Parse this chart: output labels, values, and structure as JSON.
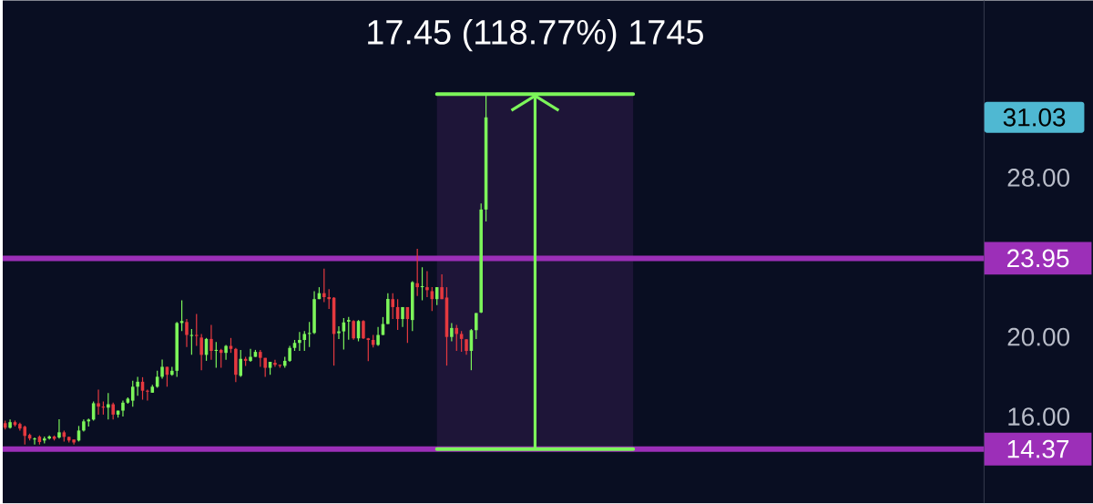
{
  "chart_data": {
    "type": "candlestick",
    "categories": [
      null,
      null,
      null,
      null,
      null,
      null,
      null,
      null,
      null,
      null,
      null,
      null,
      null,
      null,
      null,
      null,
      null,
      null,
      null,
      null,
      null,
      null,
      null,
      null,
      null,
      null,
      null,
      null,
      null,
      null,
      null,
      null,
      null,
      null,
      null,
      null,
      null,
      null,
      null,
      null,
      null,
      null,
      null,
      null,
      null,
      null,
      null,
      null,
      null,
      null,
      null,
      null,
      null,
      null,
      null,
      null,
      null,
      null,
      null,
      null,
      null,
      null,
      null,
      null,
      null,
      null,
      null,
      null,
      null,
      null,
      null,
      null,
      null,
      null,
      null,
      null,
      null,
      null,
      null,
      null,
      null,
      null,
      null,
      null,
      null,
      null,
      null,
      null,
      null,
      null,
      null,
      null,
      null,
      null,
      null,
      null,
      null,
      null,
      null,
      null,
      null,
      null,
      null,
      null,
      null,
      null,
      null,
      null,
      null,
      null,
      null,
      null,
      null,
      null,
      null,
      null,
      null,
      null,
      null,
      null,
      null,
      null,
      null,
      null,
      null,
      null,
      null,
      null,
      null,
      null,
      null,
      null,
      null,
      null,
      null,
      null,
      null,
      null,
      null,
      null,
      null,
      null,
      null,
      null,
      null,
      null,
      null,
      null,
      null,
      null,
      null,
      null,
      null,
      null,
      null,
      null,
      null,
      null,
      null,
      null,
      null,
      null,
      null,
      null,
      null,
      null,
      null,
      null,
      null,
      null,
      null,
      null,
      null,
      null,
      null,
      null,
      null,
      null,
      null,
      null,
      null,
      null,
      null,
      null,
      null,
      null,
      null,
      null,
      null,
      null,
      null,
      null,
      null,
      null,
      null,
      null,
      null,
      null,
      null,
      null
    ],
    "ohlc": [
      [
        15.67,
        15.8,
        15.35,
        15.44
      ],
      [
        15.44,
        15.85,
        15.4,
        15.72
      ],
      [
        15.72,
        15.8,
        15.5,
        15.58
      ],
      [
        15.63,
        15.7,
        15.3,
        15.4
      ],
      [
        15.49,
        15.55,
        14.6,
        15.03
      ],
      [
        15.08,
        15.15,
        14.8,
        14.9
      ],
      [
        14.85,
        14.95,
        14.6,
        14.9
      ],
      [
        14.99,
        15.05,
        14.6,
        14.72
      ],
      [
        14.8,
        15.0,
        14.65,
        14.9
      ],
      [
        14.9,
        15.05,
        14.85,
        15.0
      ],
      [
        15.0,
        15.05,
        14.8,
        14.88
      ],
      [
        14.95,
        15.87,
        14.9,
        15.21
      ],
      [
        15.21,
        15.3,
        14.75,
        14.98
      ],
      [
        14.98,
        15.0,
        14.7,
        14.8
      ],
      [
        14.85,
        14.85,
        14.6,
        14.7
      ],
      [
        14.8,
        15.53,
        14.75,
        15.3
      ],
      [
        15.3,
        15.85,
        15.25,
        15.76
      ],
      [
        15.76,
        15.9,
        15.5,
        15.85
      ],
      [
        15.85,
        16.76,
        15.8,
        16.67
      ],
      [
        16.67,
        17.36,
        16.1,
        16.5
      ],
      [
        16.5,
        16.76,
        16.1,
        16.45
      ],
      [
        16.45,
        17.18,
        15.85,
        16.62
      ],
      [
        16.62,
        16.7,
        15.85,
        16.1
      ],
      [
        16.1,
        16.3,
        15.95,
        16.3
      ],
      [
        16.3,
        16.8,
        16.0,
        16.7
      ],
      [
        16.7,
        16.96,
        16.65,
        16.9
      ],
      [
        16.8,
        17.8,
        16.5,
        17.5
      ],
      [
        17.5,
        18.0,
        17.04,
        17.75
      ],
      [
        17.75,
        17.98,
        16.85,
        17.3
      ],
      [
        17.3,
        17.35,
        16.8,
        17.25
      ],
      [
        17.2,
        17.6,
        17.2,
        17.5
      ],
      [
        17.5,
        18.3,
        17.45,
        18.0
      ],
      [
        18.0,
        18.87,
        17.9,
        18.5
      ],
      [
        18.5,
        18.5,
        17.5,
        18.1
      ],
      [
        18.1,
        18.5,
        18.05,
        18.3
      ],
      [
        18.3,
        20.75,
        18.0,
        20.7
      ],
      [
        20.7,
        21.84,
        20.3,
        20.8
      ],
      [
        20.75,
        20.9,
        19.5,
        20.1
      ],
      [
        20.05,
        20.4,
        19.1,
        20.1
      ],
      [
        20.1,
        21.15,
        19.55,
        20.05
      ],
      [
        19.97,
        20.15,
        18.33,
        19.1
      ],
      [
        19.1,
        19.95,
        18.8,
        19.9
      ],
      [
        19.9,
        20.6,
        18.85,
        19.3
      ],
      [
        19.3,
        19.75,
        18.45,
        19.35
      ],
      [
        19.35,
        19.4,
        18.45,
        19.2
      ],
      [
        19.2,
        19.6,
        18.85,
        19.55
      ],
      [
        19.55,
        19.95,
        19.2,
        19.4
      ],
      [
        19.4,
        19.45,
        17.73,
        18.1
      ],
      [
        18.05,
        19.35,
        18.0,
        18.9
      ],
      [
        18.9,
        19.0,
        18.55,
        18.8
      ],
      [
        18.8,
        19.4,
        18.75,
        19.0
      ],
      [
        19.0,
        19.35,
        19.0,
        19.25
      ],
      [
        19.25,
        19.35,
        18.5,
        18.95
      ],
      [
        18.95,
        18.95,
        18.0,
        18.45
      ],
      [
        18.45,
        18.75,
        18.1,
        18.75
      ],
      [
        18.7,
        18.85,
        18.5,
        18.6
      ],
      [
        18.6,
        18.6,
        18.45,
        18.55
      ],
      [
        18.55,
        19.0,
        18.45,
        18.8
      ],
      [
        18.8,
        19.55,
        18.75,
        19.45
      ],
      [
        19.45,
        19.85,
        19.3,
        19.7
      ],
      [
        19.7,
        20.25,
        19.3,
        19.85
      ],
      [
        19.85,
        20.3,
        19.3,
        20.15
      ],
      [
        20.15,
        20.75,
        19.5,
        20.2
      ],
      [
        20.2,
        22.3,
        20.15,
        21.9
      ],
      [
        21.9,
        22.5,
        21.9,
        22.2
      ],
      [
        22.2,
        23.43,
        21.75,
        22.0
      ],
      [
        22.0,
        22.4,
        21.4,
        21.9
      ],
      [
        21.97,
        22.0,
        18.56,
        20.15
      ],
      [
        20.19,
        20.54,
        19.89,
        20.28
      ],
      [
        20.28,
        20.95,
        19.37,
        20.73
      ],
      [
        20.77,
        21.0,
        19.86,
        20.85
      ],
      [
        20.8,
        20.85,
        19.86,
        19.93
      ],
      [
        19.93,
        20.85,
        19.78,
        20.8
      ],
      [
        20.8,
        20.85,
        19.9,
        19.93
      ],
      [
        19.93,
        19.95,
        18.79,
        19.85
      ],
      [
        19.85,
        20.1,
        19.47,
        19.6
      ],
      [
        19.6,
        20.5,
        19.55,
        20.1
      ],
      [
        20.1,
        21.0,
        20.1,
        20.65
      ],
      [
        20.65,
        22.2,
        20.65,
        21.91
      ],
      [
        21.9,
        22.2,
        20.9,
        21.5
      ],
      [
        21.5,
        21.9,
        20.35,
        20.9
      ],
      [
        20.9,
        21.5,
        20.5,
        21.5
      ],
      [
        21.5,
        21.5,
        19.7,
        20.9
      ],
      [
        20.85,
        22.8,
        20.3,
        22.75
      ],
      [
        22.7,
        24.43,
        22.06,
        22.5
      ],
      [
        22.5,
        23.5,
        21.84,
        22.55
      ],
      [
        22.5,
        23.3,
        22.0,
        22.35
      ],
      [
        22.3,
        22.5,
        21.3,
        21.9
      ],
      [
        21.9,
        22.5,
        21.6,
        22.5
      ],
      [
        22.5,
        23.15,
        21.9,
        21.9
      ],
      [
        21.98,
        22.5,
        18.56,
        20.0
      ],
      [
        20.0,
        20.7,
        19.78,
        20.45
      ],
      [
        20.45,
        20.6,
        19.3,
        20.15
      ],
      [
        20.15,
        20.3,
        19.25,
        19.9
      ],
      [
        19.88,
        19.9,
        19.1,
        19.3
      ],
      [
        19.3,
        20.4,
        18.33,
        20.34
      ],
      [
        20.34,
        21.2,
        19.9,
        21.2
      ],
      [
        21.23,
        26.7,
        21.2,
        26.4
      ],
      [
        26.4,
        32.26,
        25.8,
        31.03
      ],
      null,
      null,
      null,
      null,
      null,
      null,
      null,
      null,
      null,
      null,
      null,
      null,
      null,
      null,
      null,
      null,
      null,
      null,
      null,
      null,
      null,
      null,
      null,
      null,
      null,
      null,
      null,
      null,
      null,
      null,
      null,
      null,
      null,
      null,
      null,
      null,
      null,
      null,
      null,
      null,
      null,
      null,
      null,
      null,
      null,
      null,
      null,
      null,
      null,
      null,
      null,
      null,
      null,
      null,
      null,
      null,
      null,
      null,
      null,
      null,
      null,
      null,
      null,
      null,
      null,
      null,
      null,
      null,
      null,
      null,
      null,
      null,
      null,
      null,
      null,
      null,
      null,
      null,
      null,
      null,
      null,
      null,
      null,
      null,
      null,
      null,
      null,
      null,
      null,
      null,
      null,
      null,
      null,
      null,
      null,
      null,
      null,
      null,
      null,
      null,
      null
    ],
    "ylim": [
      11.65,
      36.9
    ],
    "yticks": [
      {
        "value": 16,
        "label": "16.00"
      },
      {
        "value": 20,
        "label": "20.00"
      },
      {
        "value": 28,
        "label": "28.00"
      }
    ],
    "tick_labels": "y",
    "ref_lines": [
      {
        "axis": "y",
        "value": 23.95,
        "label": "23.95",
        "color": "#9c2fb8"
      },
      {
        "axis": "y",
        "value": 14.37,
        "label": "14.37",
        "color": "#9c2fb8"
      }
    ],
    "bands": [
      {
        "axis": "y",
        "from": 14.37,
        "to": 32.2,
        "label": "17.45 (118.77%) 1745",
        "color": "#1e1538"
      }
    ],
    "annotations": [
      "31.03"
    ]
  }
}
